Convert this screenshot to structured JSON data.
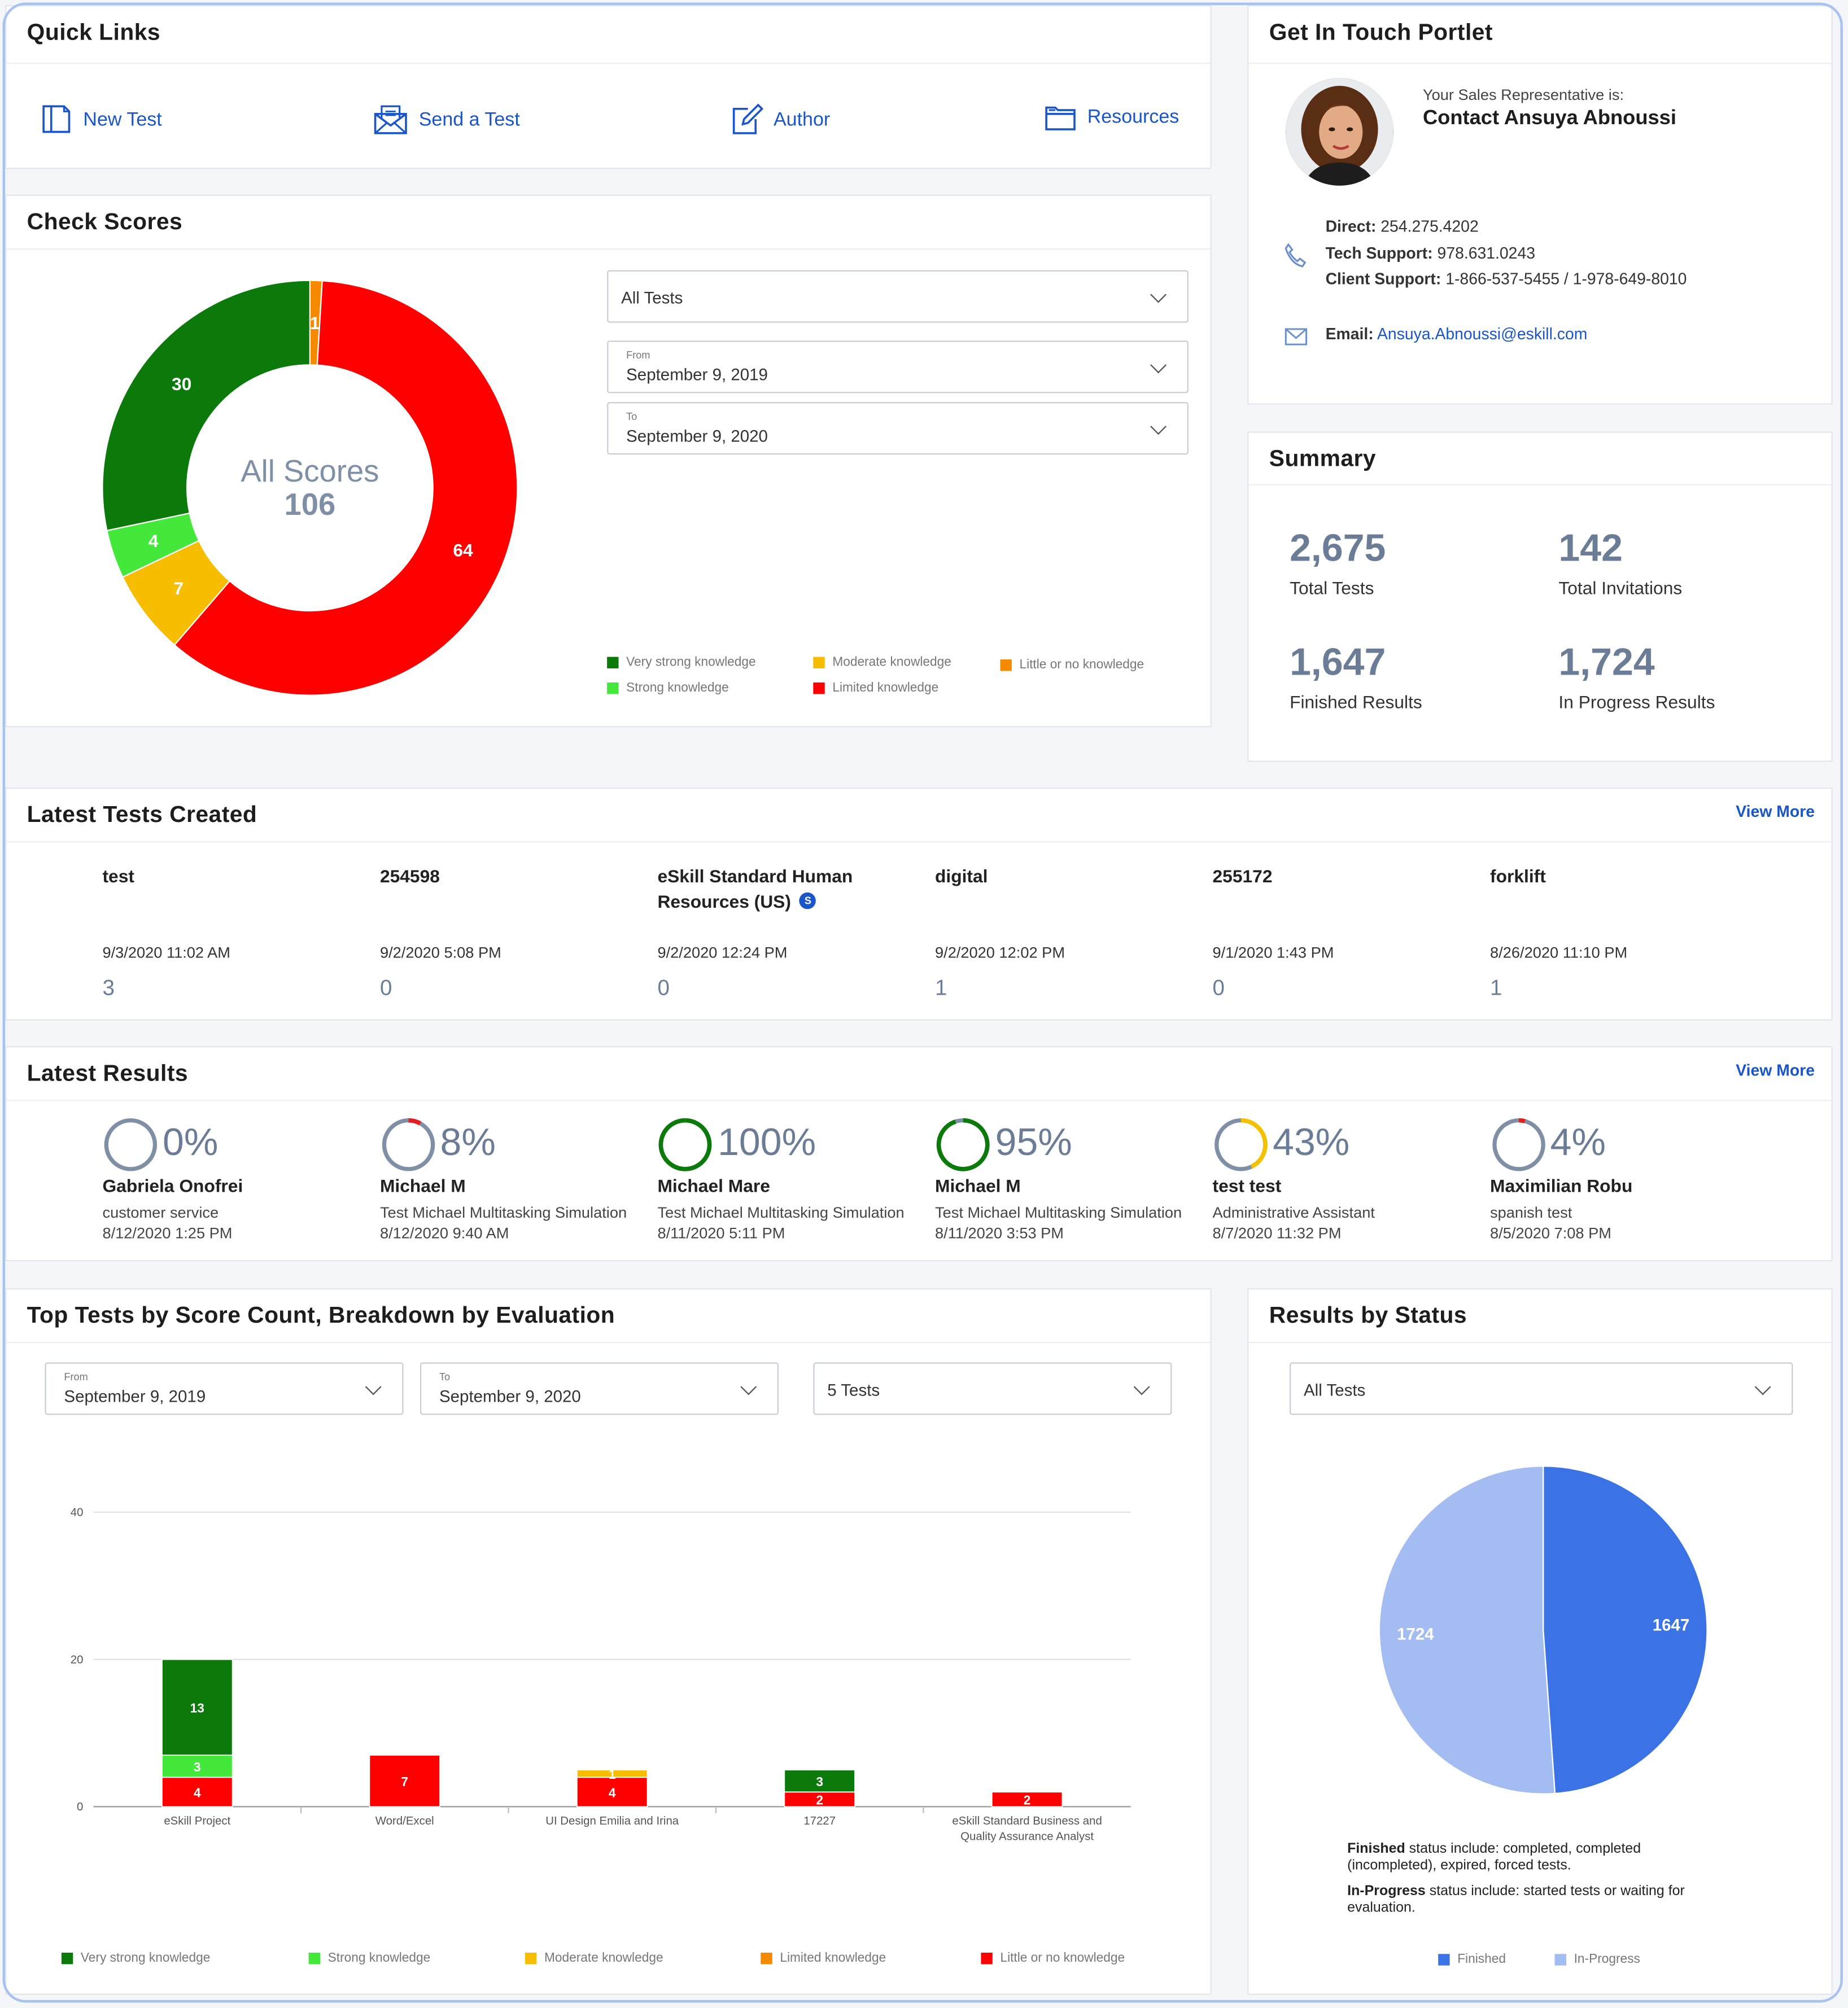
{
  "quick_links": {
    "title": "Quick Links",
    "items": [
      {
        "label": "New Test",
        "icon": "new-test-icon"
      },
      {
        "label": "Send a Test",
        "icon": "envelope-icon"
      },
      {
        "label": "Author",
        "icon": "edit-icon"
      },
      {
        "label": "Resources",
        "icon": "folder-icon"
      }
    ]
  },
  "contact": {
    "title": "Get In Touch Portlet",
    "rep_caption": "Your Sales Representative is:",
    "rep_name": "Contact Ansuya Abnoussi",
    "direct_label": "Direct:",
    "direct": "254.275.4202",
    "tech_label": "Tech Support:",
    "tech": "978.631.0243",
    "client_label": "Client Support:",
    "client": "1-866-537-5455 / 1-978-649-8010",
    "email_label": "Email:",
    "email": "Ansuya.Abnoussi@eskill.com"
  },
  "check_scores": {
    "title": "Check Scores",
    "center_label": "All Scores",
    "center_value": "106",
    "filter_test": "All Tests",
    "from_caption": "From",
    "from_value": "September 9, 2019",
    "to_caption": "To",
    "to_value": "September 9, 2020",
    "legend": [
      {
        "label": "Very strong knowledge",
        "color": "#0b7a0b"
      },
      {
        "label": "Moderate knowledge",
        "color": "#f7bd00"
      },
      {
        "label": "Little or no knowledge",
        "color": "#f58a00"
      },
      {
        "label": "Strong knowledge",
        "color": "#43e83b"
      },
      {
        "label": "Limited knowledge",
        "color": "#ff0000"
      }
    ]
  },
  "summary": {
    "title": "Summary",
    "stats": [
      {
        "value": "2,675",
        "label": "Total Tests"
      },
      {
        "value": "142",
        "label": "Total Invitations"
      },
      {
        "value": "1,647",
        "label": "Finished Results"
      },
      {
        "value": "1,724",
        "label": "In Progress Results"
      }
    ]
  },
  "latest_tests": {
    "title": "Latest Tests Created",
    "view_more": "View More",
    "badge": "S",
    "items": [
      {
        "name": "test",
        "date": "9/3/2020 11:02 AM",
        "count": "3"
      },
      {
        "name": "254598",
        "date": "9/2/2020 5:08 PM",
        "count": "0"
      },
      {
        "name": "eSkill Standard Human Resources (US)",
        "date": "9/2/2020 12:24 PM",
        "count": "0"
      },
      {
        "name": "digital",
        "date": "9/2/2020 12:02 PM",
        "count": "1"
      },
      {
        "name": "255172",
        "date": "9/1/2020 1:43 PM",
        "count": "0"
      },
      {
        "name": "forklift",
        "date": "8/26/2020 11:10 PM",
        "count": "1"
      }
    ]
  },
  "latest_results": {
    "title": "Latest Results",
    "view_more": "View More",
    "items": [
      {
        "pct": "0%",
        "value": 0,
        "color": "#7f8fa6",
        "name": "Gabriela Onofrei",
        "test": "customer service",
        "date": "8/12/2020 1:25 PM"
      },
      {
        "pct": "8%",
        "value": 8,
        "color": "#e02020",
        "name": "Michael M",
        "test": "Test Michael Multitasking Simulation",
        "date": "8/12/2020 9:40 AM"
      },
      {
        "pct": "100%",
        "value": 100,
        "color": "#0b7a0b",
        "name": "Michael Mare",
        "test": "Test Michael Multitasking Simulation",
        "date": "8/11/2020 5:11 PM"
      },
      {
        "pct": "95%",
        "value": 95,
        "color": "#0b7a0b",
        "name": "Michael M",
        "test": "Test Michael Multitasking Simulation",
        "date": "8/11/2020 3:53 PM"
      },
      {
        "pct": "43%",
        "value": 43,
        "color": "#f2c200",
        "name": "test test",
        "test": "Administrative Assistant",
        "date": "8/7/2020 11:32 PM"
      },
      {
        "pct": "4%",
        "value": 4,
        "color": "#e02020",
        "name": "Maximilian Robu",
        "test": "spanish test",
        "date": "8/5/2020 7:08 PM"
      }
    ]
  },
  "top_tests": {
    "title": "Top Tests by Score Count, Breakdown by Evaluation",
    "from_caption": "From",
    "from_value": "September 9, 2019",
    "to_caption": "To",
    "to_value": "September 9, 2020",
    "count_value": "5 Tests",
    "legend": [
      {
        "label": "Very strong knowledge",
        "color": "#0b7a0b"
      },
      {
        "label": "Strong knowledge",
        "color": "#43e83b"
      },
      {
        "label": "Moderate knowledge",
        "color": "#f7bd00"
      },
      {
        "label": "Limited knowledge",
        "color": "#f58a00"
      },
      {
        "label": "Little or no knowledge",
        "color": "#ff0000"
      }
    ]
  },
  "results_status": {
    "title": "Results by Status",
    "filter": "All Tests",
    "note1_bold": "Finished",
    "note1": " status include: completed, completed (incompleted), expired, forced tests.",
    "note2_bold": "In-Progress",
    "note2": " status include: started tests or waiting for evaluation.",
    "legend": [
      {
        "label": "Finished",
        "color": "#3b73e6"
      },
      {
        "label": "In-Progress",
        "color": "#a3bdf2"
      }
    ]
  },
  "chart_data": [
    {
      "type": "pie",
      "title": "All Scores",
      "categories": [
        "Very strong knowledge",
        "Strong knowledge",
        "Moderate knowledge",
        "Limited knowledge",
        "Little or no knowledge"
      ],
      "values": [
        30,
        4,
        7,
        64,
        1
      ],
      "colors": [
        "#0b7a0b",
        "#43e83b",
        "#f7bd00",
        "#ff0000",
        "#f58a00"
      ],
      "total": 106
    },
    {
      "type": "bar",
      "categories": [
        "eSkill Project",
        "Word/Excel",
        "UI Design Emilia and Irina",
        "17227",
        "eSkill Standard Business and Quality Assurance Analyst"
      ],
      "ylim": [
        0,
        40
      ],
      "yticks": [
        0,
        20,
        40
      ],
      "series": [
        {
          "name": "Little or no knowledge",
          "color": "#ff0000",
          "values": [
            4,
            7,
            4,
            2,
            2
          ]
        },
        {
          "name": "Moderate knowledge",
          "color": "#f7bd00",
          "values": [
            0,
            0,
            1,
            0,
            0
          ]
        },
        {
          "name": "Strong knowledge",
          "color": "#43e83b",
          "values": [
            3,
            0,
            0,
            0,
            0
          ]
        },
        {
          "name": "Very strong knowledge",
          "color": "#0b7a0b",
          "values": [
            13,
            0,
            0,
            3,
            0
          ]
        }
      ]
    },
    {
      "type": "pie",
      "categories": [
        "Finished",
        "In-Progress"
      ],
      "values": [
        1647,
        1724
      ],
      "colors": [
        "#3b73e6",
        "#a3bdf2"
      ]
    }
  ]
}
